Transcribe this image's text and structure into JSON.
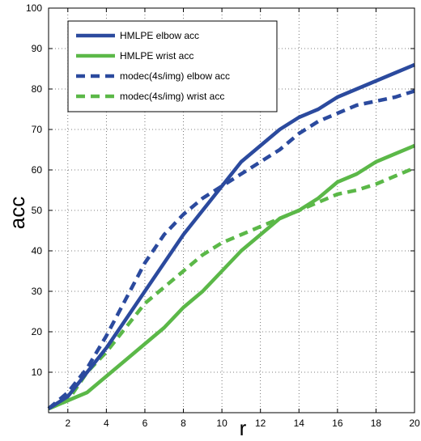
{
  "chart_data": {
    "type": "line",
    "title": "",
    "xlabel": "r",
    "ylabel": "acc",
    "xlim": [
      1,
      20
    ],
    "ylim": [
      0,
      100
    ],
    "xticks": [
      2,
      4,
      6,
      8,
      10,
      12,
      14,
      16,
      18,
      20
    ],
    "yticks": [
      10,
      20,
      30,
      40,
      50,
      60,
      70,
      80,
      90,
      100
    ],
    "grid": true,
    "legend_position": "top-left",
    "x": [
      1,
      2,
      3,
      4,
      5,
      6,
      7,
      8,
      9,
      10,
      11,
      12,
      13,
      14,
      15,
      16,
      17,
      18,
      19,
      20
    ],
    "series": [
      {
        "name": "HMLPE elbow acc",
        "color": "#2b4a9e",
        "style": "solid",
        "values": [
          1,
          4,
          10,
          16,
          23,
          30,
          37,
          44,
          50,
          56,
          62,
          66,
          70,
          73,
          75,
          78,
          80,
          82,
          84,
          86
        ]
      },
      {
        "name": "HMLPE wrist acc",
        "color": "#5bb848",
        "style": "solid",
        "values": [
          1,
          3,
          5,
          9,
          13,
          17,
          21,
          26,
          30,
          35,
          40,
          44,
          48,
          50,
          53,
          57,
          59,
          62,
          64,
          66
        ]
      },
      {
        "name": "modec(4s/img) elbow acc",
        "color": "#2b4a9e",
        "style": "dashed",
        "values": [
          1,
          5,
          11,
          19,
          28,
          37,
          44,
          49,
          53,
          56,
          59,
          62,
          65,
          69,
          72,
          74,
          76,
          77,
          78,
          79.5
        ]
      },
      {
        "name": "modec(4s/img) wrist acc",
        "color": "#5bb848",
        "style": "dashed",
        "values": [
          1,
          3,
          10,
          15,
          21,
          27,
          31,
          35,
          39,
          42,
          44,
          46,
          48,
          50,
          52,
          54,
          55,
          56.5,
          58.5,
          60.5
        ]
      }
    ]
  }
}
